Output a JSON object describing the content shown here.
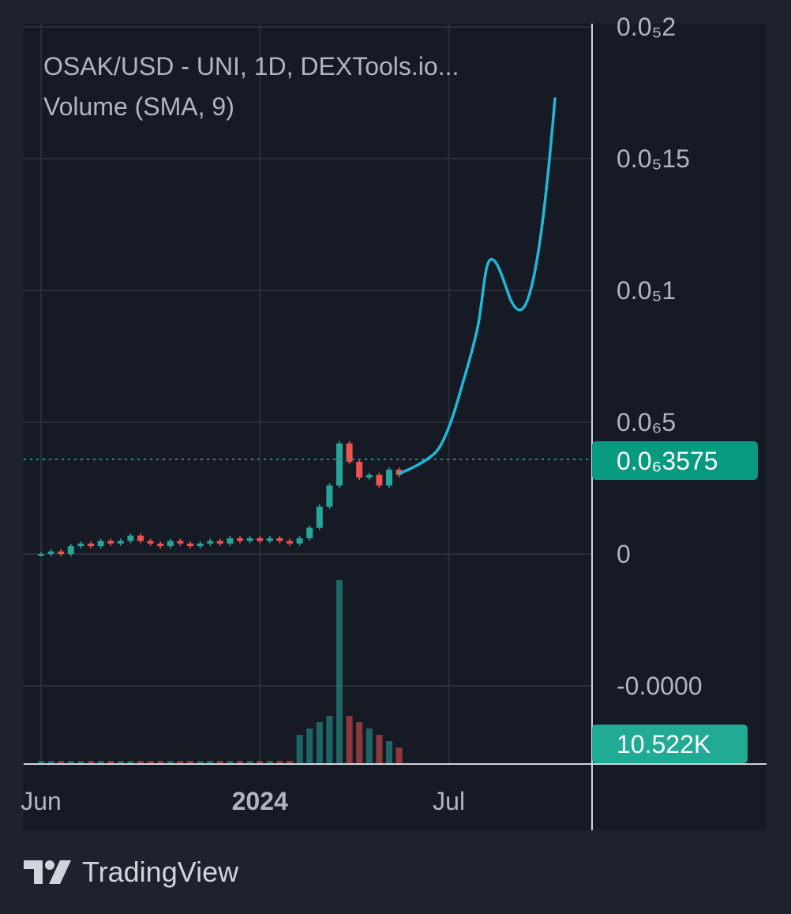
{
  "chart_data": {
    "type": "candlestick",
    "title": "OSAK/USD - UNI, 1D, DEXTools.io...",
    "indicator": "Volume (SMA, 9)",
    "y_tick_labels": [
      {
        "value": 2e-08,
        "label": "0.0₅2"
      },
      {
        "value": 1.5e-08,
        "label": "0.0₅15"
      },
      {
        "value": 1e-08,
        "label": "0.0₅1"
      },
      {
        "value": 5e-09,
        "label": "0.0₆5"
      },
      {
        "value": 0,
        "label": "0"
      },
      {
        "value": -5e-09,
        "label": "-0.0000"
      }
    ],
    "x_tick_labels": [
      {
        "index": 0,
        "label": "Jun",
        "bold": false
      },
      {
        "index": 22,
        "label": "2024",
        "bold": true
      },
      {
        "index": 41,
        "label": "Jul",
        "bold": false
      }
    ],
    "last_price": {
      "value": 3.575e-09,
      "label": "0.0₆3575",
      "color": "#089981"
    },
    "last_volume": {
      "label": "10.522K",
      "color": "#22ab94"
    },
    "up_color": "#26a69a",
    "down_color": "#ef5350",
    "drawn_line_color": "#20b8d8",
    "candles": [
      [
        0,
        0.0,
        0.0
      ],
      [
        1,
        0.0,
        1e-10
      ],
      [
        2,
        1e-10,
        0.0
      ],
      [
        3,
        0.0,
        3e-10
      ],
      [
        4,
        3e-10,
        4e-10
      ],
      [
        5,
        4e-10,
        3e-10
      ],
      [
        6,
        3e-10,
        5e-10
      ],
      [
        7,
        5e-10,
        4e-10
      ],
      [
        8,
        4e-10,
        5e-10
      ],
      [
        9,
        5e-10,
        7e-10
      ],
      [
        10,
        7e-10,
        5e-10
      ],
      [
        11,
        5e-10,
        4e-10
      ],
      [
        12,
        4e-10,
        3e-10
      ],
      [
        13,
        3e-10,
        5e-10
      ],
      [
        14,
        5e-10,
        4e-10
      ],
      [
        15,
        4e-10,
        3e-10
      ],
      [
        16,
        3e-10,
        4e-10
      ],
      [
        17,
        4e-10,
        5e-10
      ],
      [
        18,
        5e-10,
        4e-10
      ],
      [
        19,
        4e-10,
        6e-10
      ],
      [
        20,
        6e-10,
        5e-10
      ],
      [
        21,
        5e-10,
        6e-10
      ],
      [
        22,
        6e-10,
        5e-10
      ],
      [
        23,
        5e-10,
        6e-10
      ],
      [
        24,
        6e-10,
        5e-10
      ],
      [
        25,
        5e-10,
        4e-10
      ],
      [
        26,
        4e-10,
        6e-10
      ],
      [
        27,
        6e-10,
        1e-09
      ],
      [
        28,
        1e-09,
        1.8e-09
      ],
      [
        29,
        1.8e-09,
        2.6e-09
      ],
      [
        30,
        2.6e-09,
        4.2e-09
      ],
      [
        31,
        4.2e-09,
        3.5e-09
      ],
      [
        32,
        3.5e-09,
        2.9e-09
      ],
      [
        33,
        2.9e-09,
        3e-09
      ],
      [
        34,
        3e-09,
        2.6e-09
      ],
      [
        35,
        2.6e-09,
        3.2e-09
      ],
      [
        36,
        3.2e-09,
        3e-09
      ]
    ],
    "volume_peak_index": 30
  },
  "footer": {
    "brand": "TradingView"
  }
}
